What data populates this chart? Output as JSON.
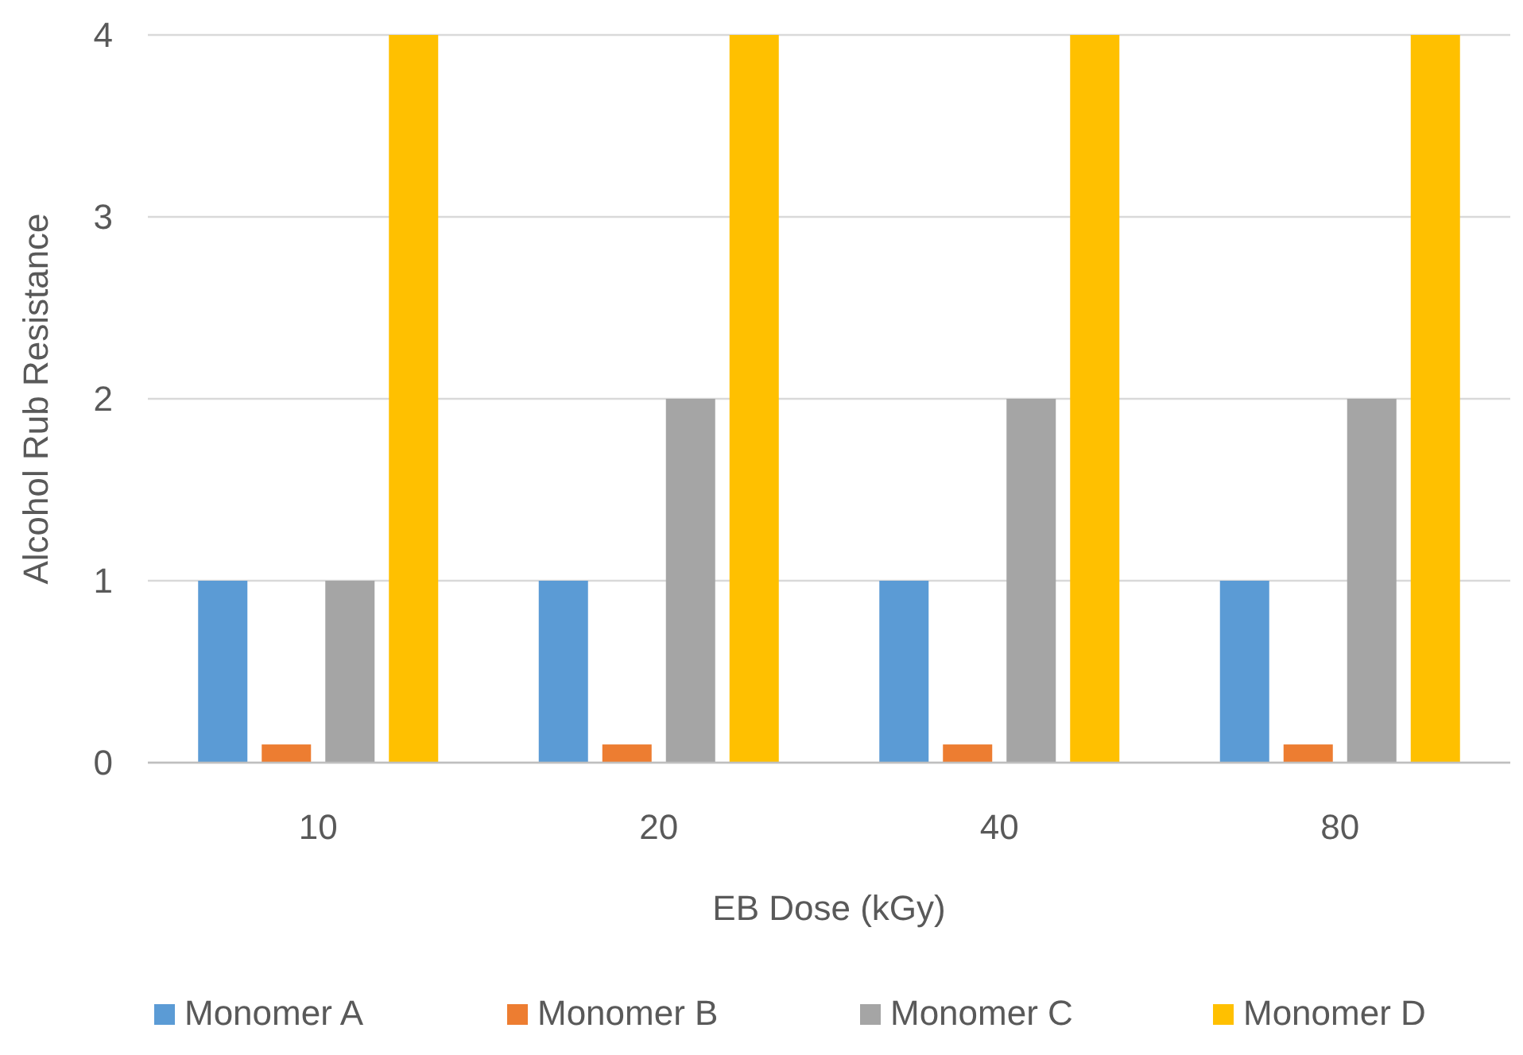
{
  "chart_data": {
    "type": "bar",
    "xlabel": "EB Dose (kGy)",
    "ylabel": "Alcohol Rub Resistance",
    "categories": [
      "10",
      "20",
      "40",
      "80"
    ],
    "series": [
      {
        "name": "Monomer A",
        "color": "#5b9bd5",
        "values": [
          1,
          1,
          1,
          1
        ]
      },
      {
        "name": "Monomer B",
        "color": "#ed7d31",
        "values": [
          0.1,
          0.1,
          0.1,
          0.1
        ]
      },
      {
        "name": "Monomer C",
        "color": "#a5a5a5",
        "values": [
          1,
          2,
          2,
          2
        ]
      },
      {
        "name": "Monomer D",
        "color": "#ffc000",
        "values": [
          4,
          4,
          4,
          4
        ]
      }
    ],
    "ylim": [
      0,
      4
    ],
    "yticks": [
      0,
      1,
      2,
      3,
      4
    ],
    "grid": "y",
    "legend": "bottom"
  }
}
